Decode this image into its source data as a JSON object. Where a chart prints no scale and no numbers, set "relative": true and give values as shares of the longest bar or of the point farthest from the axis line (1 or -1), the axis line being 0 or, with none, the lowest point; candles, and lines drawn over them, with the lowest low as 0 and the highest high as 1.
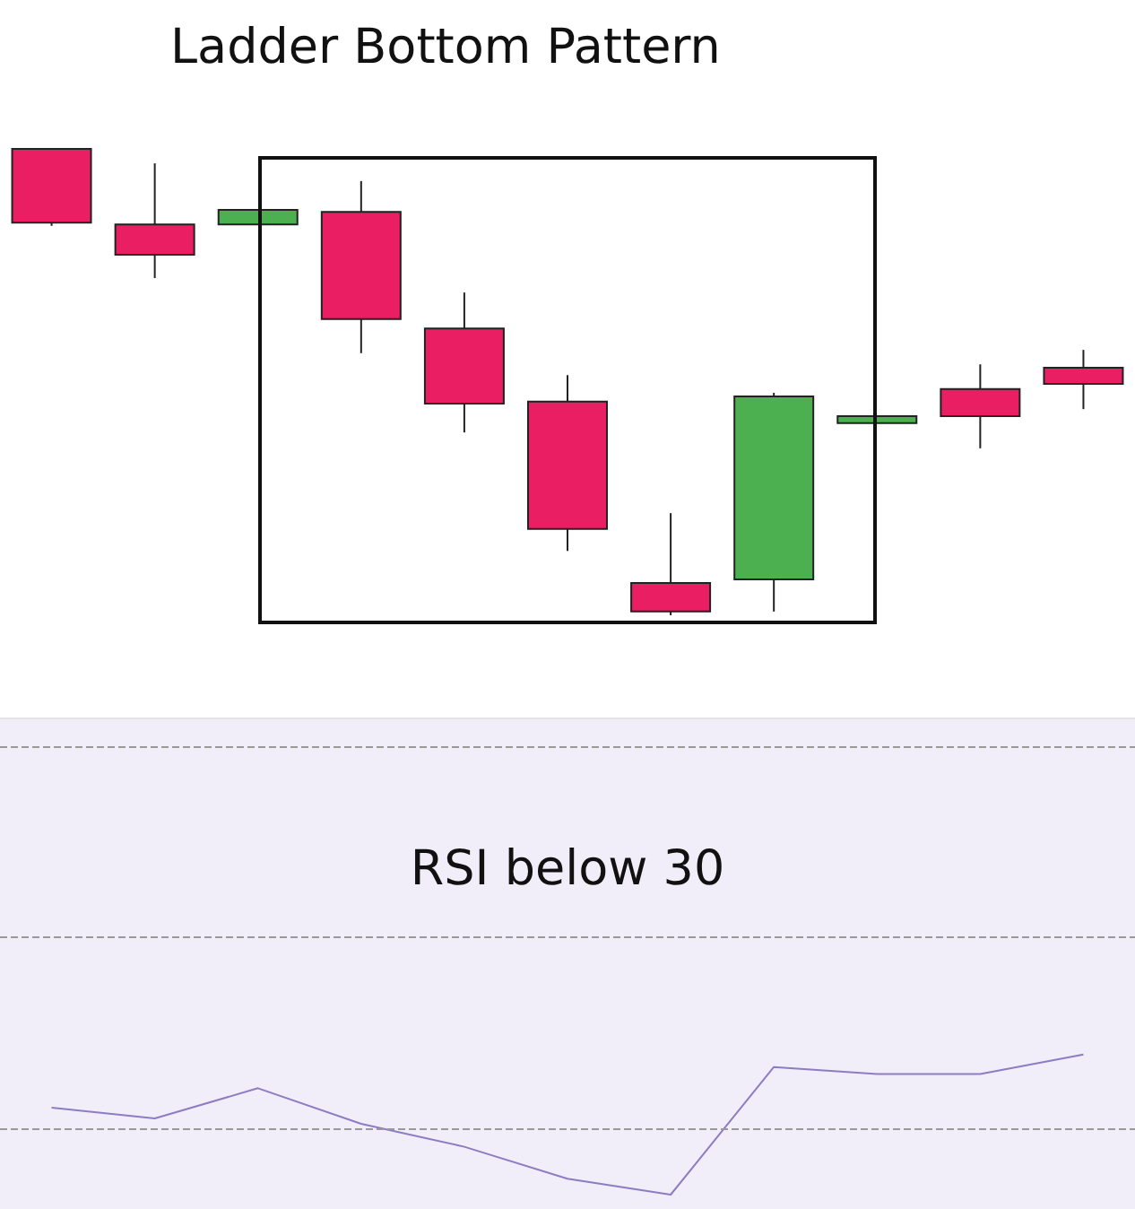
{
  "chart_data": [
    {
      "type": "candlestick",
      "title": "Ladder Bottom Pattern",
      "relative": true,
      "categories": [
        null,
        null,
        null,
        null,
        null,
        null,
        null,
        null,
        null,
        null,
        null
      ],
      "ohlc": [
        [
          1.0,
          1.0,
          0.835,
          0.842
        ],
        [
          0.838,
          0.969,
          0.723,
          0.773
        ],
        [
          0.838,
          0.869,
          0.838,
          0.869
        ],
        [
          0.865,
          0.931,
          0.562,
          0.635
        ],
        [
          0.615,
          0.692,
          0.392,
          0.454
        ],
        [
          0.458,
          0.515,
          0.138,
          0.185
        ],
        [
          0.069,
          0.219,
          0.0,
          0.008
        ],
        [
          0.077,
          0.477,
          0.008,
          0.469
        ],
        [
          0.412,
          0.427,
          0.412,
          0.427
        ],
        [
          0.485,
          0.538,
          0.358,
          0.427
        ],
        [
          0.531,
          0.569,
          0.442,
          0.496
        ]
      ],
      "colors": [
        "#e91e63",
        "#e91e63",
        "#4caf50",
        "#e91e63",
        "#e91e63",
        "#e91e63",
        "#e91e63",
        "#4caf50",
        "#4caf50",
        "#e91e63",
        "#e91e63"
      ],
      "grid": false
    },
    {
      "type": "line",
      "relative": true,
      "annotations": [
        "RSI below 30"
      ],
      "categories": [
        null,
        null,
        null,
        null,
        null,
        null,
        null,
        null,
        null,
        null,
        null
      ],
      "series": [
        {
          "color": "#8e7cc3",
          "values": [
            0.286,
            0.143,
            0.548,
            0.071,
            -0.238,
            -0.667,
            -0.881,
            0.833,
            0.738,
            0.738,
            1.0
          ]
        }
      ],
      "ref_lines": [
        {
          "axis": "y",
          "value": 0,
          "color": "#999999",
          "line_style": "dashed"
        },
        {
          "axis": "y",
          "value": 2.57,
          "color": "#999999",
          "line_style": "dashed"
        },
        {
          "axis": "y",
          "value": 5.14,
          "color": "#999999",
          "line_style": "dashed"
        }
      ],
      "marker": "none",
      "grid": false
    }
  ]
}
